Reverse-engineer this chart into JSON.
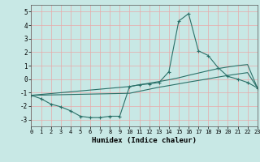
{
  "xlabel": "Humidex (Indice chaleur)",
  "xlim": [
    0,
    23
  ],
  "ylim": [
    -3.5,
    5.5
  ],
  "yticks": [
    -3,
    -2,
    -1,
    0,
    1,
    2,
    3,
    4,
    5
  ],
  "xticks": [
    0,
    1,
    2,
    3,
    4,
    5,
    6,
    7,
    8,
    9,
    10,
    11,
    12,
    13,
    14,
    15,
    16,
    17,
    18,
    19,
    20,
    21,
    22,
    23
  ],
  "bg_color": "#c8e8e5",
  "grid_color": "#e8aaaa",
  "line_color": "#2a7068",
  "line1_x": [
    0,
    1,
    2,
    3,
    4,
    5,
    6,
    7,
    8,
    9,
    10,
    11,
    12,
    13,
    14,
    15,
    16,
    17,
    18,
    19,
    20,
    21,
    22,
    23
  ],
  "line1_y": [
    -1.2,
    -1.45,
    -1.85,
    -2.05,
    -2.35,
    -2.75,
    -2.85,
    -2.85,
    -2.75,
    -2.75,
    -0.55,
    -0.42,
    -0.35,
    -0.25,
    0.55,
    4.3,
    4.85,
    2.1,
    1.75,
    0.85,
    0.2,
    0.0,
    -0.25,
    -0.65
  ],
  "line2_x": [
    0,
    10,
    11,
    12,
    13,
    14,
    15,
    16,
    17,
    18,
    19,
    20,
    21,
    22,
    23
  ],
  "line2_y": [
    -1.2,
    -0.55,
    -0.42,
    -0.3,
    -0.18,
    -0.05,
    0.1,
    0.28,
    0.45,
    0.62,
    0.78,
    0.9,
    1.0,
    1.08,
    -0.65
  ],
  "line3_x": [
    0,
    10,
    11,
    12,
    13,
    14,
    15,
    16,
    17,
    18,
    19,
    20,
    21,
    22,
    23
  ],
  "line3_y": [
    -1.2,
    -1.05,
    -0.9,
    -0.75,
    -0.6,
    -0.48,
    -0.35,
    -0.22,
    -0.1,
    0.02,
    0.15,
    0.27,
    0.38,
    0.48,
    -0.65
  ]
}
